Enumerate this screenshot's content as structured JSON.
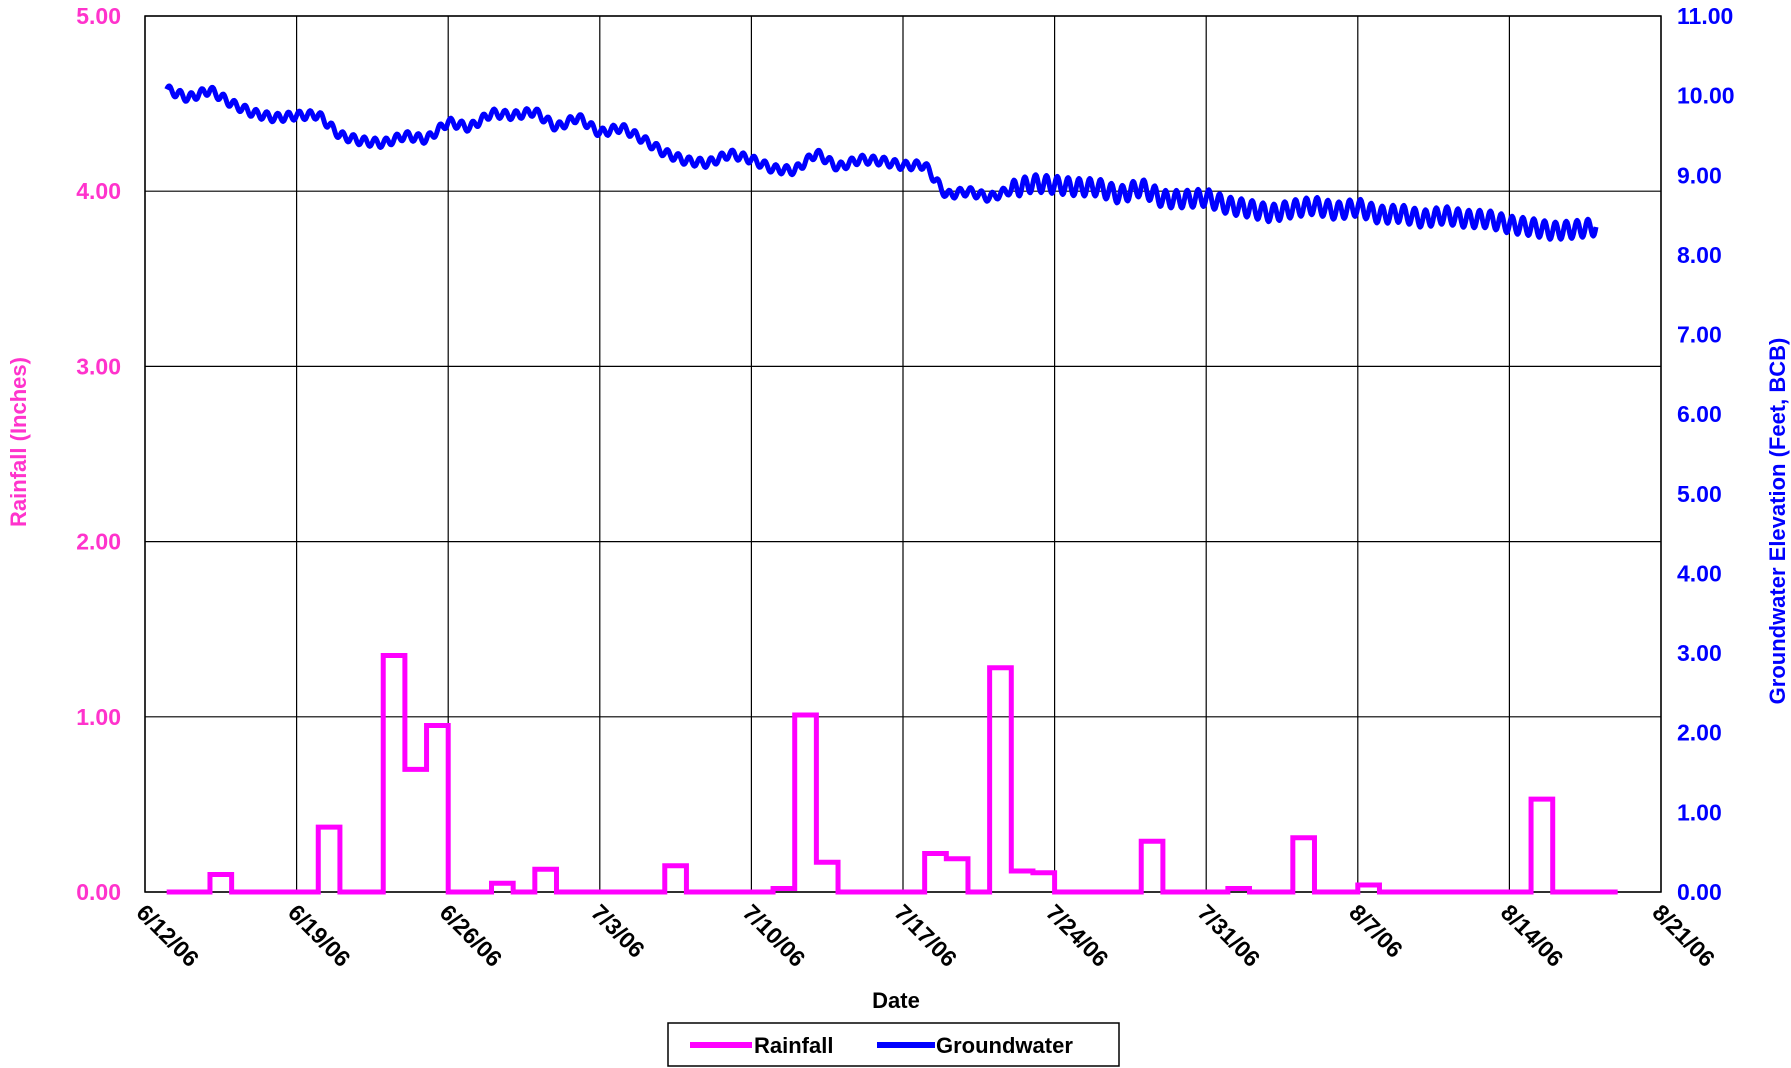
{
  "chart_data": {
    "type": "line",
    "xlabel": "Date",
    "ylabel_left": "Rainfall (Inches)",
    "ylabel_right": "Groundwater Elevation (Feet, BCB)",
    "xlim": [
      "6/12/06",
      "8/21/06"
    ],
    "x_ticks": [
      "6/12/06",
      "6/19/06",
      "6/26/06",
      "7/3/06",
      "7/10/06",
      "7/17/06",
      "7/24/06",
      "7/31/06",
      "8/7/06",
      "8/14/06",
      "8/21/06"
    ],
    "y_left_lim": [
      0,
      5
    ],
    "y_left_ticks": [
      "0.00",
      "1.00",
      "2.00",
      "3.00",
      "4.00",
      "5.00"
    ],
    "y_right_lim": [
      0,
      11
    ],
    "y_right_ticks": [
      "0.00",
      "1.00",
      "2.00",
      "3.00",
      "4.00",
      "5.00",
      "6.00",
      "7.00",
      "8.00",
      "9.00",
      "10.00",
      "11.00"
    ],
    "grid": true,
    "legend_position": "bottom-center",
    "colors": {
      "rainfall": "#ff00ff",
      "groundwater": "#0000ff",
      "grid": "#000000"
    },
    "series": [
      {
        "name": "Rainfall",
        "axis": "left",
        "style": "step",
        "points": [
          [
            "6/13/06",
            0.0
          ],
          [
            "6/14/06",
            0.0
          ],
          [
            "6/15/06",
            0.1
          ],
          [
            "6/16/06",
            0.0
          ],
          [
            "6/17/06",
            0.0
          ],
          [
            "6/18/06",
            0.0
          ],
          [
            "6/19/06",
            0.0
          ],
          [
            "6/20/06",
            0.37
          ],
          [
            "6/21/06",
            0.0
          ],
          [
            "6/22/06",
            0.0
          ],
          [
            "6/23/06",
            1.35
          ],
          [
            "6/24/06",
            0.7
          ],
          [
            "6/25/06",
            0.95
          ],
          [
            "6/26/06",
            0.0
          ],
          [
            "6/27/06",
            0.0
          ],
          [
            "6/28/06",
            0.05
          ],
          [
            "6/29/06",
            0.0
          ],
          [
            "6/30/06",
            0.13
          ],
          [
            "7/1/06",
            0.0
          ],
          [
            "7/2/06",
            0.0
          ],
          [
            "7/3/06",
            0.0
          ],
          [
            "7/4/06",
            0.0
          ],
          [
            "7/5/06",
            0.0
          ],
          [
            "7/6/06",
            0.15
          ],
          [
            "7/7/06",
            0.0
          ],
          [
            "7/8/06",
            0.0
          ],
          [
            "7/9/06",
            0.0
          ],
          [
            "7/10/06",
            0.0
          ],
          [
            "7/11/06",
            0.02
          ],
          [
            "7/12/06",
            1.01
          ],
          [
            "7/13/06",
            0.17
          ],
          [
            "7/14/06",
            0.0
          ],
          [
            "7/15/06",
            0.0
          ],
          [
            "7/16/06",
            0.0
          ],
          [
            "7/17/06",
            0.0
          ],
          [
            "7/18/06",
            0.22
          ],
          [
            "7/19/06",
            0.19
          ],
          [
            "7/20/06",
            0.0
          ],
          [
            "7/21/06",
            1.28
          ],
          [
            "7/22/06",
            0.12
          ],
          [
            "7/23/06",
            0.11
          ],
          [
            "7/24/06",
            0.0
          ],
          [
            "7/25/06",
            0.0
          ],
          [
            "7/26/06",
            0.0
          ],
          [
            "7/27/06",
            0.0
          ],
          [
            "7/28/06",
            0.29
          ],
          [
            "7/29/06",
            0.0
          ],
          [
            "7/30/06",
            0.0
          ],
          [
            "7/31/06",
            0.0
          ],
          [
            "8/1/06",
            0.02
          ],
          [
            "8/2/06",
            0.0
          ],
          [
            "8/3/06",
            0.0
          ],
          [
            "8/4/06",
            0.31
          ],
          [
            "8/5/06",
            0.0
          ],
          [
            "8/6/06",
            0.0
          ],
          [
            "8/7/06",
            0.04
          ],
          [
            "8/8/06",
            0.0
          ],
          [
            "8/9/06",
            0.0
          ],
          [
            "8/10/06",
            0.0
          ],
          [
            "8/11/06",
            0.0
          ],
          [
            "8/12/06",
            0.0
          ],
          [
            "8/13/06",
            0.0
          ],
          [
            "8/14/06",
            0.0
          ],
          [
            "8/15/06",
            0.53
          ],
          [
            "8/16/06",
            0.0
          ],
          [
            "8/17/06",
            0.0
          ],
          [
            "8/18/06",
            0.0
          ]
        ]
      },
      {
        "name": "Groundwater",
        "axis": "right",
        "style": "line",
        "points": [
          [
            "6/13/06",
            10.08
          ],
          [
            "6/14/06",
            9.97
          ],
          [
            "6/15/06",
            10.07
          ],
          [
            "6/16/06",
            9.9
          ],
          [
            "6/17/06",
            9.78
          ],
          [
            "6/18/06",
            9.72
          ],
          [
            "6/19/06",
            9.75
          ],
          [
            "6/20/06",
            9.76
          ],
          [
            "6/21/06",
            9.5
          ],
          [
            "6/22/06",
            9.43
          ],
          [
            "6/23/06",
            9.4
          ],
          [
            "6/24/06",
            9.5
          ],
          [
            "6/25/06",
            9.45
          ],
          [
            "6/26/06",
            9.67
          ],
          [
            "6/27/06",
            9.6
          ],
          [
            "6/28/06",
            9.78
          ],
          [
            "6/29/06",
            9.75
          ],
          [
            "6/30/06",
            9.8
          ],
          [
            "7/1/06",
            9.6
          ],
          [
            "7/2/06",
            9.73
          ],
          [
            "7/3/06",
            9.53
          ],
          [
            "7/4/06",
            9.6
          ],
          [
            "7/5/06",
            9.45
          ],
          [
            "7/6/06",
            9.28
          ],
          [
            "7/7/06",
            9.18
          ],
          [
            "7/8/06",
            9.15
          ],
          [
            "7/9/06",
            9.27
          ],
          [
            "7/10/06",
            9.2
          ],
          [
            "7/11/06",
            9.08
          ],
          [
            "7/12/06",
            9.06
          ],
          [
            "7/13/06",
            9.28
          ],
          [
            "7/14/06",
            9.1
          ],
          [
            "7/15/06",
            9.2
          ],
          [
            "7/16/06",
            9.18
          ],
          [
            "7/17/06",
            9.12
          ],
          [
            "7/18/06",
            9.13
          ],
          [
            "7/19/06",
            8.75
          ],
          [
            "7/20/06",
            8.8
          ],
          [
            "7/21/06",
            8.72
          ],
          [
            "7/22/06",
            8.82
          ],
          [
            "7/23/06",
            8.9
          ],
          [
            "7/24/06",
            8.88
          ],
          [
            "7/25/06",
            8.85
          ],
          [
            "7/26/06",
            8.85
          ],
          [
            "7/27/06",
            8.75
          ],
          [
            "7/28/06",
            8.85
          ],
          [
            "7/29/06",
            8.7
          ],
          [
            "7/30/06",
            8.7
          ],
          [
            "7/31/06",
            8.72
          ],
          [
            "8/1/06",
            8.62
          ],
          [
            "8/2/06",
            8.58
          ],
          [
            "8/3/06",
            8.52
          ],
          [
            "8/4/06",
            8.58
          ],
          [
            "8/5/06",
            8.62
          ],
          [
            "8/6/06",
            8.55
          ],
          [
            "8/7/06",
            8.6
          ],
          [
            "8/8/06",
            8.5
          ],
          [
            "8/9/06",
            8.52
          ],
          [
            "8/10/06",
            8.45
          ],
          [
            "8/11/06",
            8.5
          ],
          [
            "8/12/06",
            8.45
          ],
          [
            "8/13/06",
            8.45
          ],
          [
            "8/14/06",
            8.38
          ],
          [
            "8/15/06",
            8.35
          ],
          [
            "8/16/06",
            8.3
          ],
          [
            "8/17/06",
            8.32
          ],
          [
            "8/18/06",
            8.35
          ]
        ]
      }
    ]
  }
}
